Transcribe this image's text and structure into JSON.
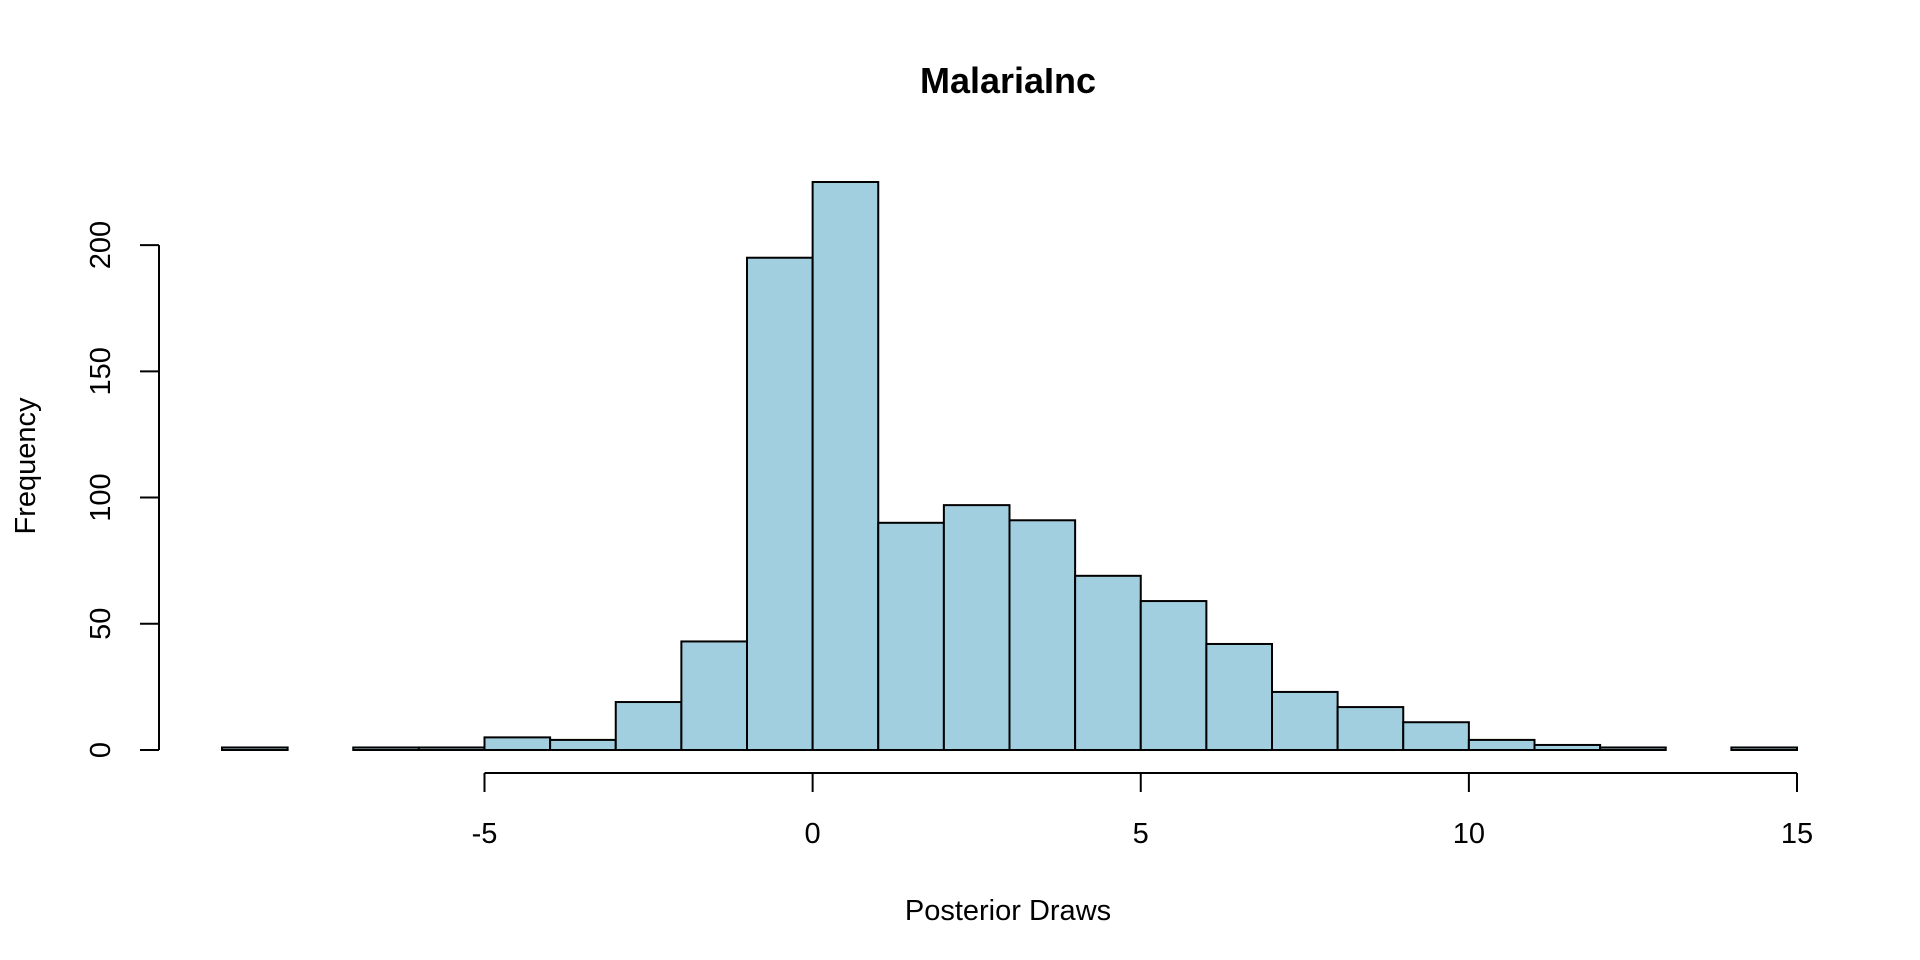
{
  "chart_data": {
    "type": "bar",
    "title": "MalariaInc",
    "xlabel": "Posterior Draws",
    "ylabel": "Frequency",
    "bar_color": "#A1CFE0",
    "bins": [
      {
        "x0": -9,
        "x1": -8,
        "count": 1
      },
      {
        "x0": -8,
        "x1": -7,
        "count": 0
      },
      {
        "x0": -7,
        "x1": -6,
        "count": 1
      },
      {
        "x0": -6,
        "x1": -5,
        "count": 1
      },
      {
        "x0": -5,
        "x1": -4,
        "count": 5
      },
      {
        "x0": -4,
        "x1": -3,
        "count": 4
      },
      {
        "x0": -3,
        "x1": -2,
        "count": 19
      },
      {
        "x0": -2,
        "x1": -1,
        "count": 43
      },
      {
        "x0": -1,
        "x1": 0,
        "count": 195
      },
      {
        "x0": 0,
        "x1": 1,
        "count": 225
      },
      {
        "x0": 1,
        "x1": 2,
        "count": 90
      },
      {
        "x0": 2,
        "x1": 3,
        "count": 97
      },
      {
        "x0": 3,
        "x1": 4,
        "count": 91
      },
      {
        "x0": 4,
        "x1": 5,
        "count": 69
      },
      {
        "x0": 5,
        "x1": 6,
        "count": 59
      },
      {
        "x0": 6,
        "x1": 7,
        "count": 42
      },
      {
        "x0": 7,
        "x1": 8,
        "count": 23
      },
      {
        "x0": 8,
        "x1": 9,
        "count": 17
      },
      {
        "x0": 9,
        "x1": 10,
        "count": 11
      },
      {
        "x0": 10,
        "x1": 11,
        "count": 4
      },
      {
        "x0": 11,
        "x1": 12,
        "count": 2
      },
      {
        "x0": 12,
        "x1": 13,
        "count": 1
      },
      {
        "x0": 13,
        "x1": 14,
        "count": 0
      },
      {
        "x0": 14,
        "x1": 15,
        "count": 1
      }
    ],
    "xlim": [
      -9,
      15
    ],
    "ylim": [
      0,
      225
    ],
    "x_ticks": [
      -5,
      0,
      5,
      10,
      15
    ],
    "x_tick_labels": [
      "-5",
      "0",
      "5",
      "10",
      "15"
    ],
    "y_ticks": [
      0,
      50,
      100,
      150,
      200
    ],
    "y_tick_labels": [
      "0",
      "50",
      "100",
      "150",
      "200"
    ],
    "grid": false,
    "legend": "none"
  }
}
